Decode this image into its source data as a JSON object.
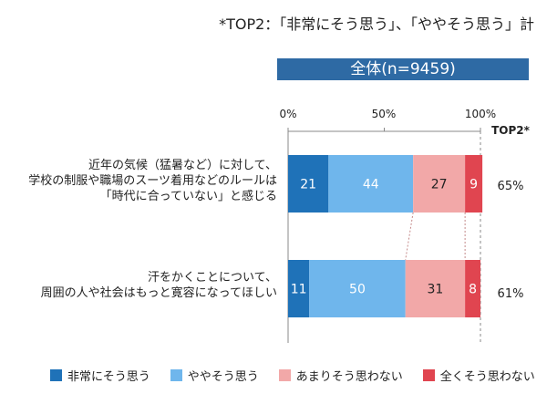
{
  "note": "*TOP2：「非常にそう思う」、「ややそう思う」計",
  "population": "全体(n=9459)",
  "colors": {
    "population_band": "#2e6aa4",
    "grid": "#888888",
    "connector": "#c48a8a",
    "segments": [
      "#1f72b8",
      "#6fb6ec",
      "#f2a8a8",
      "#e04550"
    ]
  },
  "chart_data": {
    "type": "bar",
    "orientation": "horizontal",
    "stacked": true,
    "xlim": [
      0,
      100
    ],
    "x_ticks": [
      "0%",
      "50%",
      "100%"
    ],
    "top2_header": "TOP2*",
    "categories": [
      "近年の気候（猛暑など）に対して、学校の制服や職場のスーツ着用などのルールは「時代に合っていない」と感じる",
      "汗をかくことについて、周囲の人や社会はもっと寛容になってほしい"
    ],
    "category_lines": [
      [
        "近年の気候（猛暑など）に対して、",
        "学校の制服や職場のスーツ着用などのルールは",
        "「時代に合っていない」と感じる"
      ],
      [
        "汗をかくことについて、",
        "周囲の人や社会はもっと寛容になってほしい"
      ]
    ],
    "series": [
      {
        "name": "非常にそう思う",
        "values": [
          21,
          11
        ]
      },
      {
        "name": "ややそう思う",
        "values": [
          44,
          50
        ]
      },
      {
        "name": "あまりそう思わない",
        "values": [
          27,
          31
        ]
      },
      {
        "name": "全くそう思わない",
        "values": [
          9,
          8
        ]
      }
    ],
    "top2": [
      "65%",
      "61%"
    ],
    "legend": [
      "非常にそう思う",
      "ややそう思う",
      "あまりそう思わない",
      "全くそう思わない"
    ],
    "legend_position": "bottom"
  }
}
